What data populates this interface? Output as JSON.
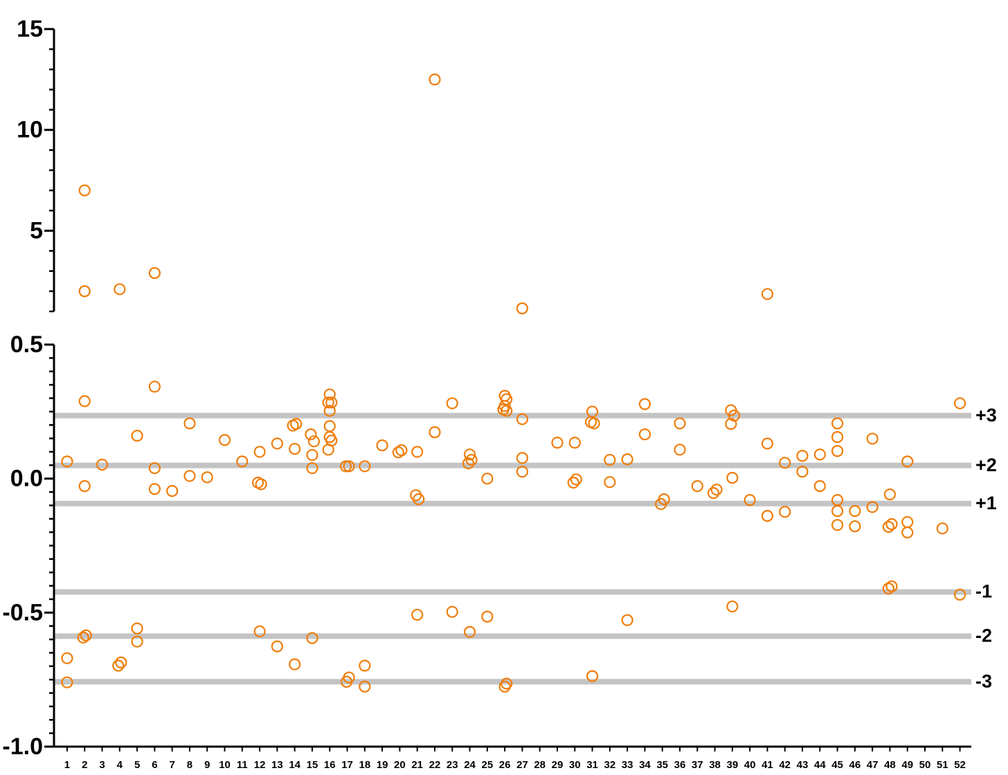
{
  "chart_data": [
    {
      "type": "scatter",
      "color": "#f07d0a",
      "xlim": [
        0.25,
        52.65
      ],
      "ylim": [
        1,
        15
      ],
      "yticks": [
        5,
        10,
        15
      ],
      "yminorticks": [
        1,
        2,
        3,
        4,
        6,
        7,
        8,
        9,
        11,
        12,
        13,
        14
      ],
      "x": [
        2,
        2,
        4,
        6,
        22,
        27,
        41
      ],
      "y": [
        7,
        2,
        2.1,
        2.9,
        12.5,
        1.15,
        1.86
      ]
    },
    {
      "type": "scatter",
      "color": "#f07d0a",
      "xlim": [
        0.25,
        52.65
      ],
      "xticks": [
        1,
        2,
        3,
        4,
        5,
        6,
        7,
        8,
        9,
        10,
        11,
        12,
        13,
        14,
        15,
        16,
        17,
        18,
        19,
        20,
        21,
        22,
        23,
        24,
        25,
        26,
        27,
        28,
        29,
        30,
        31,
        32,
        33,
        34,
        35,
        36,
        37,
        38,
        39,
        40,
        41,
        42,
        43,
        44,
        45,
        46,
        47,
        48,
        49,
        50,
        51,
        52
      ],
      "ylim": [
        -1,
        0.5
      ],
      "yticks": [
        {
          "value": -1,
          "label": "-1.0"
        },
        -0.5,
        {
          "value": 0,
          "label": "0.0"
        },
        0.5
      ],
      "yminorticks": [
        -0.95,
        -0.9,
        -0.85,
        -0.8,
        -0.75,
        -0.7,
        -0.65,
        -0.6,
        -0.55,
        -0.45,
        -0.4,
        -0.35,
        -0.3,
        -0.25,
        -0.2,
        -0.15,
        -0.1,
        -0.05,
        0.05,
        0.1,
        0.15,
        0.2,
        0.25,
        0.3,
        0.35,
        0.4,
        0.45
      ],
      "reference_line_color": "#c4c4c4",
      "reference_lines": [
        {
          "value": 0.235,
          "label": "+3"
        },
        {
          "value": 0.049,
          "label": "+2"
        },
        {
          "value": -0.093,
          "label": "+1"
        },
        {
          "value": -0.423,
          "label": "-1"
        },
        {
          "value": -0.588,
          "label": "-2"
        },
        {
          "value": -0.758,
          "label": "-3"
        }
      ],
      "x": [
        1,
        1,
        1,
        2,
        2,
        1.92,
        2.08,
        3,
        3.92,
        4.08,
        5,
        5,
        5,
        6,
        6,
        6,
        7,
        8,
        8,
        9,
        10,
        11,
        12,
        11.9,
        12.08,
        12,
        13,
        13,
        13.9,
        14.08,
        14,
        14,
        14.92,
        15.1,
        15,
        15,
        15,
        16,
        15.92,
        16.1,
        16,
        16,
        16,
        16.1,
        15.92,
        16.92,
        17.1,
        16.96,
        17.1,
        18,
        18,
        18,
        19,
        19.92,
        20.1,
        21,
        20.92,
        21.08,
        21,
        22,
        23,
        23,
        23.92,
        24,
        24.1,
        24,
        25,
        25,
        26,
        26.1,
        26,
        25.92,
        26.1,
        26,
        26.1,
        27,
        27,
        27,
        29,
        29.92,
        30.08,
        30,
        31,
        30.92,
        31.1,
        31,
        32,
        32,
        33,
        33,
        34,
        34,
        34.92,
        35.1,
        36,
        36,
        37,
        37.92,
        38.1,
        38.92,
        39.1,
        38.92,
        39,
        39,
        40,
        41,
        41,
        42,
        42,
        43,
        43,
        44,
        44,
        45,
        45,
        45,
        45,
        45,
        45,
        46,
        46,
        47,
        47,
        48,
        47.92,
        48.1,
        47.92,
        48.1,
        49,
        49,
        49,
        51,
        52,
        52
      ],
      "y": [
        0.064,
        -0.67,
        -0.76,
        0.289,
        -0.028,
        -0.593,
        -0.585,
        0.052,
        -0.698,
        -0.686,
        0.16,
        -0.559,
        -0.608,
        0.343,
        0.039,
        -0.039,
        -0.046,
        0.206,
        0.01,
        0.005,
        0.144,
        0.064,
        0.1,
        -0.015,
        -0.021,
        -0.57,
        0.131,
        -0.626,
        0.198,
        0.204,
        0.111,
        -0.693,
        0.165,
        0.139,
        0.088,
        0.039,
        -0.595,
        0.314,
        0.284,
        0.284,
        0.253,
        0.196,
        0.155,
        0.142,
        0.108,
        0.046,
        0.046,
        -0.758,
        -0.742,
        0.046,
        -0.698,
        -0.776,
        0.124,
        0.098,
        0.106,
        0.1,
        -0.062,
        -0.077,
        -0.508,
        0.173,
        0.281,
        -0.497,
        0.057,
        0.09,
        0.07,
        -0.572,
        0,
        -0.515,
        0.309,
        0.296,
        0.271,
        0.258,
        0.253,
        -0.776,
        -0.765,
        0.222,
        0.077,
        0.026,
        0.134,
        -0.015,
        -0.003,
        0.134,
        0.25,
        0.211,
        0.206,
        -0.737,
        0.07,
        -0.013,
        0.072,
        -0.528,
        0.278,
        0.165,
        -0.095,
        -0.077,
        0.206,
        0.108,
        -0.028,
        -0.054,
        -0.041,
        0.255,
        0.235,
        0.204,
        0.003,
        -0.477,
        -0.08,
        0.131,
        -0.139,
        0.059,
        -0.124,
        0.085,
        0.026,
        0.09,
        -0.028,
        0.206,
        0.155,
        0.103,
        -0.08,
        -0.121,
        -0.173,
        -0.121,
        -0.178,
        0.149,
        -0.106,
        -0.059,
        -0.18,
        -0.17,
        -0.41,
        -0.402,
        0.064,
        -0.162,
        -0.201,
        -0.186,
        0.281,
        -0.433
      ]
    }
  ]
}
